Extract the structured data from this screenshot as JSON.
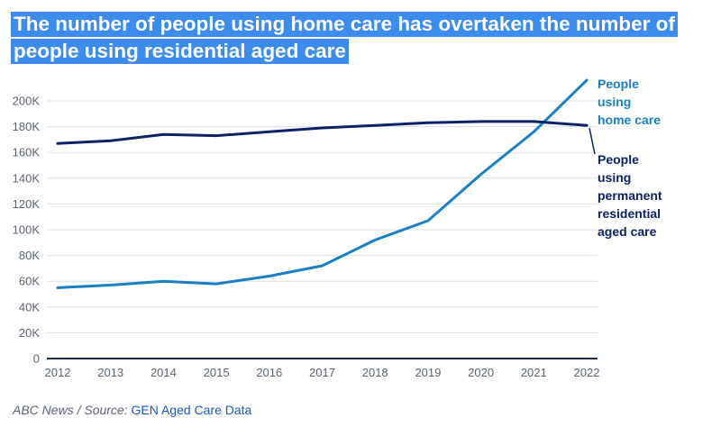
{
  "title_lines": [
    "The number of people using home care has overtaken the number of",
    "people using residential aged care"
  ],
  "footer": {
    "prefix": "ABC News / Source:",
    "source": "GEN Aged Care Data"
  },
  "colors": {
    "title_bg": "#3c8cf0",
    "home_care": "#1a7fc4",
    "residential": "#0d2266",
    "grid": "#dcdfe4",
    "axis": "#1b2a4a",
    "link": "#1a56c9"
  },
  "chart_data": {
    "type": "line",
    "title": "The number of people using home care has overtaken the number of people using residential aged care",
    "x": [
      2012,
      2013,
      2014,
      2015,
      2016,
      2017,
      2018,
      2019,
      2020,
      2021,
      2022
    ],
    "y_ticks": [
      0,
      20000,
      40000,
      60000,
      80000,
      100000,
      120000,
      140000,
      160000,
      180000,
      200000
    ],
    "y_tick_labels": [
      "0",
      "20K",
      "40K",
      "60K",
      "80K",
      "100K",
      "120K",
      "140K",
      "160K",
      "180K",
      "200K"
    ],
    "ylim": [
      0,
      200000
    ],
    "grid": true,
    "series": [
      {
        "name": "People using home care",
        "label_lines": [
          "People",
          "using",
          "home care"
        ],
        "color": "#1a7fc4",
        "values": [
          55000,
          57000,
          60000,
          58000,
          64000,
          72000,
          92000,
          107000,
          143000,
          176000,
          216000
        ]
      },
      {
        "name": "People using permanent residential aged care",
        "label_lines": [
          "People",
          "using",
          "permanent",
          "residential",
          "aged care"
        ],
        "color": "#0d2266",
        "values": [
          167000,
          169000,
          174000,
          173000,
          176000,
          179000,
          181000,
          183000,
          184000,
          184000,
          181000
        ]
      }
    ]
  }
}
